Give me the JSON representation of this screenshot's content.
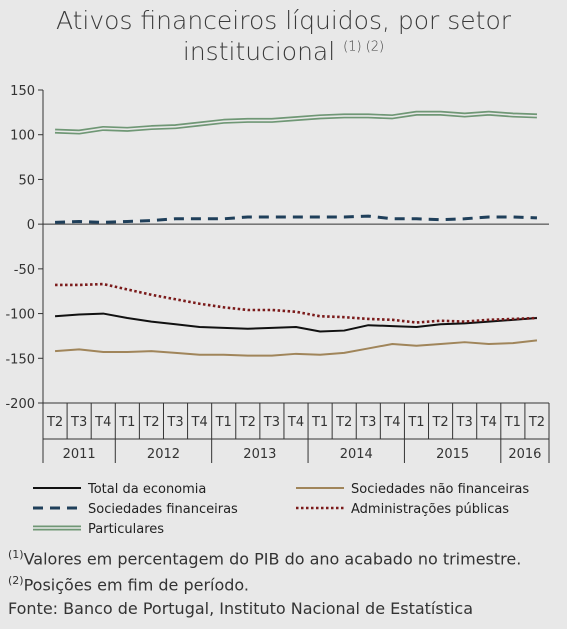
{
  "title": {
    "line1": "Ativos financeiros líquidos, por setor",
    "line2": "institucional",
    "refs": "(1) (2)"
  },
  "colors": {
    "background": "#e8e8e8",
    "total": "#111111",
    "nao_financeiras": "#a0855a",
    "financeiras": "#1f3f5a",
    "publicas": "#7a1a1a",
    "particulares": "#6f9775"
  },
  "chart_data": {
    "type": "line",
    "quarters": [
      "T2",
      "T3",
      "T4",
      "T1",
      "T2",
      "T3",
      "T4",
      "T1",
      "T2",
      "T3",
      "T4",
      "T1",
      "T2",
      "T3",
      "T4",
      "T1",
      "T2",
      "T3",
      "T4",
      "T1",
      "T2"
    ],
    "years": [
      {
        "label": "2011",
        "quarters": 3
      },
      {
        "label": "2012",
        "quarters": 4
      },
      {
        "label": "2013",
        "quarters": 4
      },
      {
        "label": "2014",
        "quarters": 4
      },
      {
        "label": "2015",
        "quarters": 4
      },
      {
        "label": "2016",
        "quarters": 2
      }
    ],
    "ylim": [
      -200,
      150
    ],
    "yticks": [
      "150",
      "100",
      "50",
      "0",
      "-50",
      "-100",
      "-150",
      "-200"
    ],
    "series": [
      {
        "name": "Total da economia",
        "key": "total",
        "style": "solid",
        "values": [
          -103,
          -101,
          -100,
          -105,
          -109,
          -112,
          -115,
          -116,
          -117,
          -116,
          -115,
          -120,
          -119,
          -113,
          -114,
          -115,
          -112,
          -111,
          -109,
          -107,
          -105
        ]
      },
      {
        "name": "Sociedades não financeiras",
        "key": "nao_financeiras",
        "style": "solid",
        "values": [
          -142,
          -140,
          -143,
          -143,
          -142,
          -144,
          -146,
          -146,
          -147,
          -147,
          -145,
          -146,
          -144,
          -139,
          -134,
          -136,
          -134,
          -132,
          -134,
          -133,
          -130
        ]
      },
      {
        "name": "Sociedades financeiras",
        "key": "financeiras",
        "style": "dashed",
        "values": [
          2,
          3,
          2,
          3,
          4,
          6,
          6,
          6,
          8,
          8,
          8,
          8,
          8,
          9,
          6,
          6,
          5,
          6,
          8,
          8,
          7
        ]
      },
      {
        "name": "Administrações públicas",
        "key": "publicas",
        "style": "dotted",
        "values": [
          -68,
          -68,
          -67,
          -73,
          -79,
          -84,
          -89,
          -93,
          -96,
          -96,
          -98,
          -103,
          -104,
          -106,
          -107,
          -110,
          -108,
          -109,
          -107,
          -106,
          -105
        ]
      },
      {
        "name": "Particulares",
        "key": "particulares",
        "style": "double",
        "values": [
          104,
          103,
          107,
          106,
          108,
          109,
          112,
          115,
          116,
          116,
          118,
          120,
          121,
          121,
          120,
          124,
          124,
          122,
          124,
          122,
          121
        ]
      }
    ]
  },
  "notes": [
    {
      "ref": "(1)",
      "text": "Valores em percentagem do PIB do ano acabado no trimestre."
    },
    {
      "ref": "(2)",
      "text": "Posições em fim de período."
    },
    {
      "ref": "",
      "text": "Fonte: Banco de Portugal, Instituto Nacional de Estatística"
    }
  ]
}
